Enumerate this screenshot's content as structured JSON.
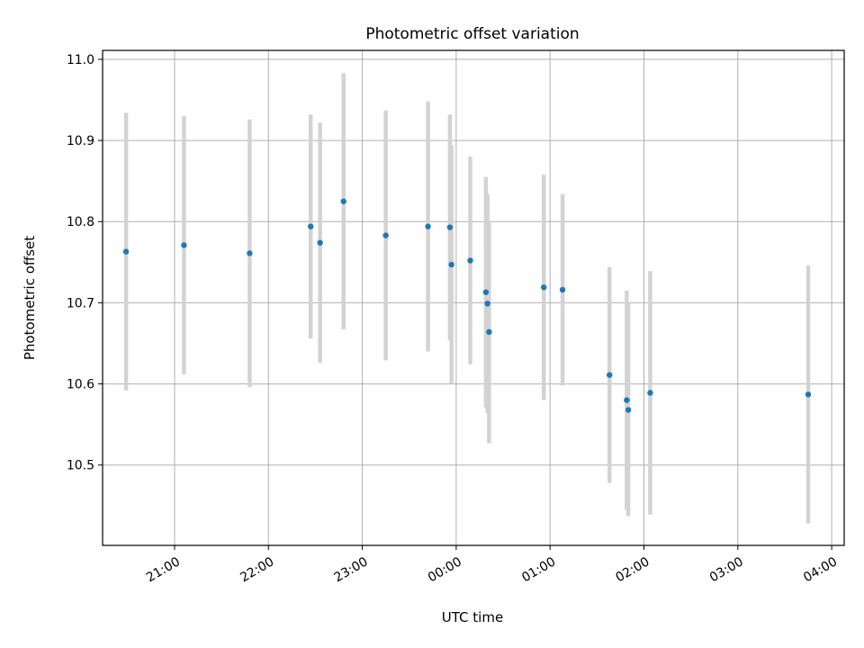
{
  "chart_data": {
    "type": "scatter",
    "title": "Photometric offset variation",
    "xlabel": "UTC time",
    "ylabel": "Photometric offset",
    "x_axis": "time",
    "x_ticks": [
      "21:00",
      "22:00",
      "23:00",
      "00:00",
      "01:00",
      "02:00",
      "03:00",
      "04:00"
    ],
    "y_ticks": [
      "10.5",
      "10.6",
      "10.7",
      "10.8",
      "10.9",
      "11.0"
    ],
    "xlim": [
      "20:14",
      "04:08"
    ],
    "ylim": [
      10.401,
      11.011
    ],
    "grid": true,
    "marker_color": "#1f77b4",
    "errorbar_color": "#d3d3d3",
    "points": [
      {
        "x": "20:29",
        "y": 10.763,
        "err": 0.171
      },
      {
        "x": "21:06",
        "y": 10.771,
        "err": 0.159
      },
      {
        "x": "21:48",
        "y": 10.761,
        "err": 0.165
      },
      {
        "x": "22:27",
        "y": 10.794,
        "err": 0.138
      },
      {
        "x": "22:33",
        "y": 10.774,
        "err": 0.148
      },
      {
        "x": "22:48",
        "y": 10.825,
        "err": 0.158
      },
      {
        "x": "23:15",
        "y": 10.783,
        "err": 0.154
      },
      {
        "x": "23:42",
        "y": 10.794,
        "err": 0.154
      },
      {
        "x": "23:56",
        "y": 10.793,
        "err": 0.139
      },
      {
        "x": "23:57",
        "y": 10.747,
        "err": 0.147
      },
      {
        "x": "00:09",
        "y": 10.752,
        "err": 0.128
      },
      {
        "x": "00:19",
        "y": 10.713,
        "err": 0.142
      },
      {
        "x": "00:20",
        "y": 10.699,
        "err": 0.135
      },
      {
        "x": "00:21",
        "y": 10.664,
        "err": 0.137
      },
      {
        "x": "00:56",
        "y": 10.719,
        "err": 0.139
      },
      {
        "x": "01:08",
        "y": 10.716,
        "err": 0.118
      },
      {
        "x": "01:38",
        "y": 10.611,
        "err": 0.133
      },
      {
        "x": "01:49",
        "y": 10.58,
        "err": 0.135
      },
      {
        "x": "01:50",
        "y": 10.568,
        "err": 0.131
      },
      {
        "x": "02:04",
        "y": 10.589,
        "err": 0.15
      },
      {
        "x": "03:45",
        "y": 10.587,
        "err": 0.159
      }
    ]
  }
}
